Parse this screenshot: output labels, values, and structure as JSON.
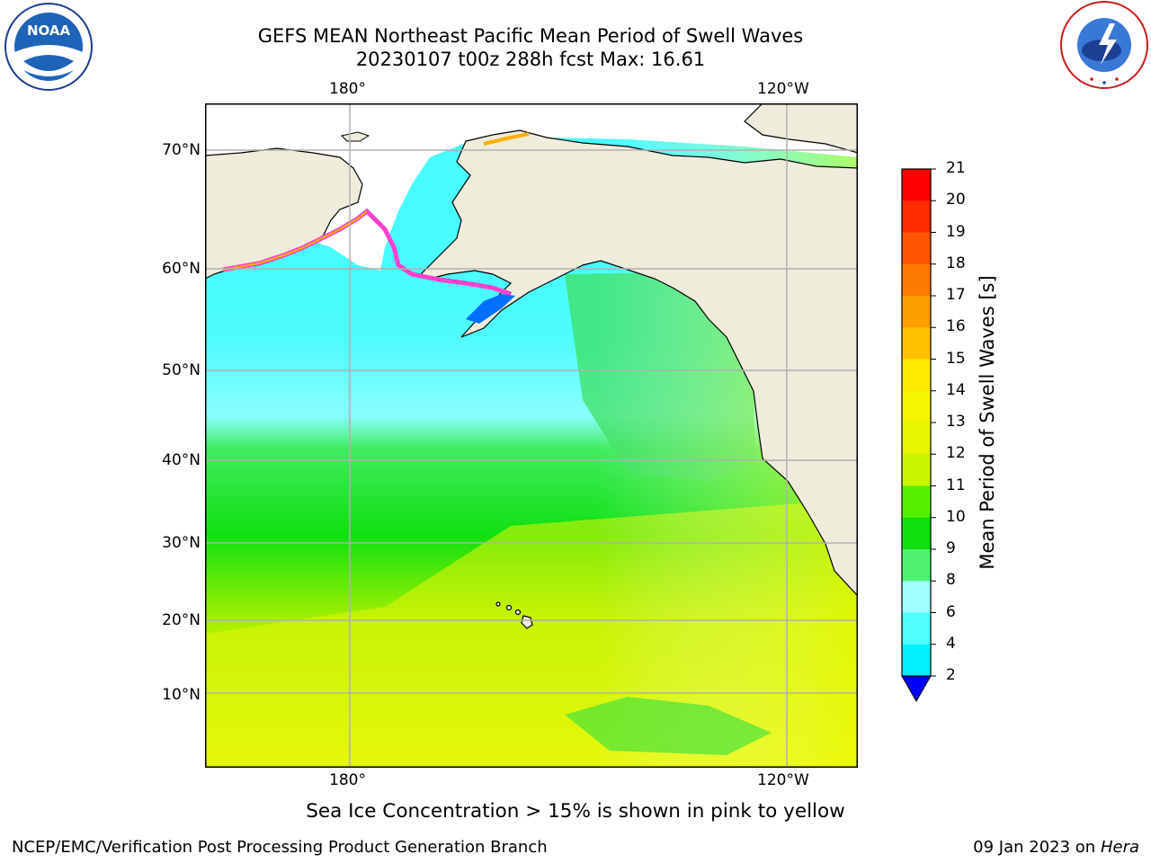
{
  "title": {
    "line1": "GEFS MEAN Northeast Pacific Mean Period of Swell Waves",
    "line2": "20230107 t00z 288h fcst   Max: 16.61"
  },
  "axes": {
    "top_lon": [
      "180°",
      "120°W"
    ],
    "bottom_lon": [
      "180°",
      "120°W"
    ],
    "lat": [
      "70°N",
      "60°N",
      "50°N",
      "40°N",
      "30°N",
      "20°N",
      "10°N"
    ]
  },
  "colorbar": {
    "label": "Mean Period of Swell Waves [s]",
    "ticks": [
      "21",
      "20",
      "19",
      "18",
      "17",
      "16",
      "15",
      "14",
      "13",
      "12",
      "11",
      "10",
      "9",
      "8",
      "6",
      "4",
      "2"
    ],
    "colors": [
      "#ff0000",
      "#ff2a00",
      "#ff5500",
      "#ff7a00",
      "#ff9e00",
      "#ffc000",
      "#ffea00",
      "#f5f500",
      "#e6f500",
      "#c8f500",
      "#55f000",
      "#10e010",
      "#50f070",
      "#a0ffff",
      "#50ffff",
      "#00f0ff",
      "#00d0ff",
      "#0070ff",
      "#0000ff"
    ]
  },
  "note": "Sea Ice Concentration > 15% is shown in pink to yellow",
  "footer": {
    "left": "NCEP/EMC/Verification Post Processing Product Generation Branch",
    "right_prefix": "09 Jan 2023 on ",
    "right_host": "Hera"
  },
  "logos": {
    "left": "NOAA",
    "right": "NATIONAL WEATHER SERVICE"
  },
  "map_colors": {
    "land": "#efecdc",
    "ocean_north": "#46fcff",
    "ocean_mid": "#1ee81e",
    "ocean_south": "#e2f90e",
    "grid": "#b0b0b0"
  }
}
